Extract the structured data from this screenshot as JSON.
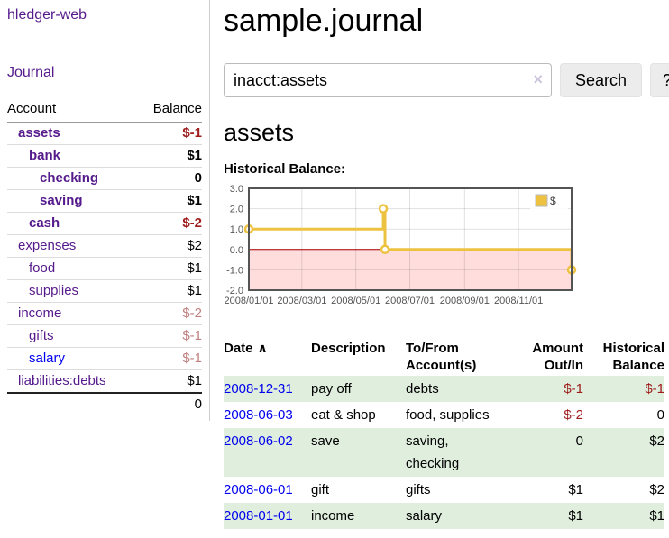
{
  "app": {
    "title": "hledger-web"
  },
  "sidebar": {
    "journal_label": "Journal",
    "accounts": {
      "header_account": "Account",
      "header_balance": "Balance",
      "rows": [
        {
          "name": "assets",
          "level": 1,
          "bold": true,
          "name_color": "purple",
          "balance": "$-1",
          "balance_style": "negative"
        },
        {
          "name": "bank",
          "level": 2,
          "bold": true,
          "name_color": "purple",
          "balance": "$1",
          "balance_style": "normal"
        },
        {
          "name": "checking",
          "level": 3,
          "bold": true,
          "name_color": "purple",
          "balance": "0",
          "balance_style": "normal"
        },
        {
          "name": "saving",
          "level": 3,
          "bold": true,
          "name_color": "purple",
          "balance": "$1",
          "balance_style": "normal"
        },
        {
          "name": "cash",
          "level": 2,
          "bold": true,
          "name_color": "purple",
          "balance": "$-2",
          "balance_style": "negative"
        },
        {
          "name": "expenses",
          "level": 1,
          "bold": false,
          "name_color": "purple",
          "balance": "$2",
          "balance_style": "normal"
        },
        {
          "name": "food",
          "level": 2,
          "bold": false,
          "name_color": "purple",
          "balance": "$1",
          "balance_style": "normal"
        },
        {
          "name": "supplies",
          "level": 2,
          "bold": false,
          "name_color": "purple",
          "balance": "$1",
          "balance_style": "normal"
        },
        {
          "name": "income",
          "level": 1,
          "bold": false,
          "name_color": "purple",
          "balance": "$-2",
          "balance_style": "negative_faded"
        },
        {
          "name": "gifts",
          "level": 2,
          "bold": false,
          "name_color": "purple",
          "balance": "$-1",
          "balance_style": "negative_faded"
        },
        {
          "name": "salary",
          "level": 2,
          "bold": false,
          "name_color": "blue",
          "balance": "$-1",
          "balance_style": "negative_faded"
        },
        {
          "name": "liabilities:debts",
          "level": 1,
          "bold": false,
          "name_color": "purple",
          "balance": "$1",
          "balance_style": "normal"
        }
      ],
      "total": "0"
    }
  },
  "main": {
    "title": "sample.journal",
    "search": {
      "value": "inacct:assets",
      "clear_icon": "×",
      "search_label": "Search",
      "help_label": "?"
    },
    "account_heading": "assets",
    "chart_label": "Historical Balance:",
    "register": {
      "headers": [
        {
          "lines": [
            "Date"
          ],
          "sort_icon": "∧",
          "align": "left"
        },
        {
          "lines": [
            "Description"
          ],
          "align": "left"
        },
        {
          "lines": [
            "To/From",
            "Account(s)"
          ],
          "align": "left"
        },
        {
          "lines": [
            "Amount",
            "Out/In"
          ],
          "align": "right"
        },
        {
          "lines": [
            "Historical",
            "Balance"
          ],
          "align": "right"
        }
      ],
      "rows": [
        {
          "date": "2008-12-31",
          "description": "pay off",
          "accounts": [
            "debts"
          ],
          "amount": "$-1",
          "amount_negative": true,
          "balance": "$-1",
          "balance_negative": true,
          "shaded": true
        },
        {
          "date": "2008-06-03",
          "description": "eat & shop",
          "accounts": [
            "food, supplies"
          ],
          "amount": "$-2",
          "amount_negative": true,
          "balance": "0",
          "balance_negative": false,
          "shaded": false
        },
        {
          "date": "2008-06-02",
          "description": "save",
          "accounts": [
            "saving,",
            "checking"
          ],
          "amount": "0",
          "amount_negative": false,
          "balance": "$2",
          "balance_negative": false,
          "shaded": true
        },
        {
          "date": "2008-06-01",
          "description": "gift",
          "accounts": [
            "gifts"
          ],
          "amount": "$1",
          "amount_negative": false,
          "balance": "$2",
          "balance_negative": false,
          "shaded": false
        },
        {
          "date": "2008-01-01",
          "description": "income",
          "accounts": [
            "salary"
          ],
          "amount": "$1",
          "amount_negative": false,
          "balance": "$1",
          "balance_negative": false,
          "shaded": true
        }
      ]
    }
  },
  "chart_data": {
    "type": "line",
    "step": true,
    "title": "Historical Balance:",
    "series": [
      {
        "name": "$",
        "color": "#edc240",
        "points": [
          [
            "2008-01-01",
            1
          ],
          [
            "2008-06-01",
            2
          ],
          [
            "2008-06-03",
            0
          ],
          [
            "2008-12-31",
            -1
          ]
        ]
      }
    ],
    "x_range": [
      "2008-01-01",
      "2008-12-31"
    ],
    "ylim": [
      -2,
      3
    ],
    "y_tick_labels": [
      "3.0",
      "2.0",
      "1.0",
      "0.0",
      "-1.0",
      "-2.0"
    ],
    "x_tick_dates": [
      "2008-01-01",
      "2008-03-01",
      "2008-05-01",
      "2008-07-01",
      "2008-09-01",
      "2008-11-01"
    ],
    "x_tick_labels": [
      "2008/01/01",
      "2008/03/01",
      "2008/05/01",
      "2008/07/01",
      "2008/09/01",
      "2008/11/01"
    ],
    "grid": true,
    "legend": {
      "label": "$",
      "position": "top-right"
    },
    "markings": {
      "below_zero_fill": "#ffdddd",
      "zero_line_color": "#aa0000"
    }
  },
  "colors": {
    "purple_link": "#551a8b",
    "blue_link": "#0000ee",
    "negative": "#9d1c1c",
    "negative_faded": "#c08080",
    "row_green": "#dfeedd",
    "chart_line": "#edc240",
    "chart_below_zero": "#ffdddd",
    "chart_zero_line": "#aa0000",
    "chart_border": "#545454"
  }
}
